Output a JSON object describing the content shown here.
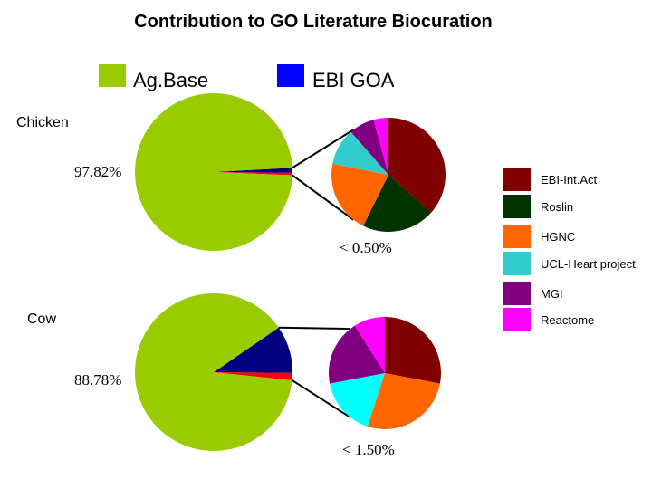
{
  "title": "Contribution to GO Literature Biocuration",
  "top_legend": [
    {
      "label": "Ag.Base",
      "color": "#99CC00"
    },
    {
      "label": "EBI GOA",
      "color": "#0000FF"
    }
  ],
  "side_legend": [
    {
      "label": "EBI-Int.Act",
      "color": "#800000"
    },
    {
      "label": "Roslin",
      "color": "#003300"
    },
    {
      "label": "HGNC",
      "color": "#FF6600"
    },
    {
      "label": "UCL-Heart project",
      "color": "#33CCCC"
    },
    {
      "label": "MGI",
      "color": "#800080"
    },
    {
      "label": "Reactome",
      "color": "#FF00FF"
    }
  ],
  "chart_data": [
    {
      "type": "pie",
      "title": "Chicken",
      "main_label": "97.82%",
      "slices": [
        {
          "name": "Ag.Base",
          "value": 97.82,
          "color": "#99CC00"
        },
        {
          "name": "EBI GOA",
          "value": 1.0,
          "color": "#000080"
        },
        {
          "name": "Other",
          "value": 0.5,
          "color": "#FF0000"
        }
      ],
      "breakout_label": "< 0.50%",
      "breakout": [
        {
          "name": "EBI-Int.Act",
          "value": 35,
          "color": "#800000"
        },
        {
          "name": "Roslin",
          "value": 20,
          "color": "#003300"
        },
        {
          "name": "HGNC",
          "value": 20,
          "color": "#FF6600"
        },
        {
          "name": "UCL-Heart project",
          "value": 10,
          "color": "#33CCCC"
        },
        {
          "name": "MGI",
          "value": 7,
          "color": "#800080"
        },
        {
          "name": "Reactome",
          "value": 4,
          "color": "#FF00FF"
        }
      ]
    },
    {
      "type": "pie",
      "title": "Cow",
      "main_label": "88.78%",
      "slices": [
        {
          "name": "Ag.Base",
          "value": 88.78,
          "color": "#99CC00"
        },
        {
          "name": "EBI GOA",
          "value": 9.72,
          "color": "#000080"
        },
        {
          "name": "Other",
          "value": 1.5,
          "color": "#FF0000"
        }
      ],
      "breakout_label": "< 1.50%",
      "breakout": [
        {
          "name": "EBI-Int.Act",
          "value": 28,
          "color": "#800000"
        },
        {
          "name": "HGNC",
          "value": 27,
          "color": "#FF6600"
        },
        {
          "name": "UCL-Heart project",
          "value": 17,
          "color": "#00FFFF"
        },
        {
          "name": "MGI",
          "value": 19,
          "color": "#800080"
        },
        {
          "name": "Reactome",
          "value": 9,
          "color": "#FF00FF"
        }
      ]
    }
  ]
}
